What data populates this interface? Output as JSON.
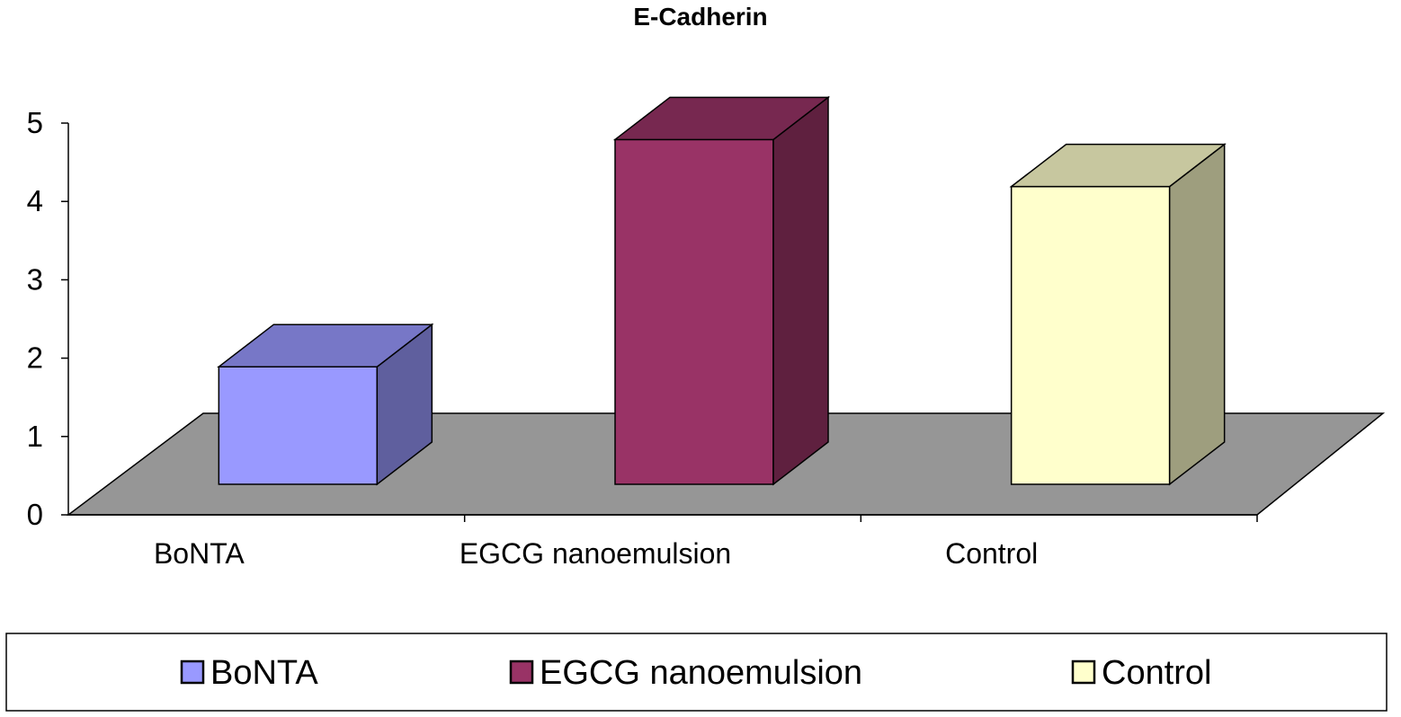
{
  "chart_data": {
    "type": "bar",
    "style": "3d-column",
    "title": "E-Cadherin",
    "xlabel": "",
    "ylabel": "",
    "ylim": [
      0,
      5
    ],
    "yticks": [
      0,
      1,
      2,
      3,
      4,
      5
    ],
    "categories": [
      "BoNTA",
      "EGCG nanoemulsion",
      "Control"
    ],
    "series": [
      {
        "name": "BoNTA",
        "values": [
          1.5,
          null,
          null
        ],
        "color": "#9999ff"
      },
      {
        "name": "EGCG nanoemulsion",
        "values": [
          null,
          4.4,
          null
        ],
        "color": "#993366"
      },
      {
        "name": "Control",
        "values": [
          null,
          null,
          3.8
        ],
        "color": "#ffffcc"
      }
    ],
    "values": [
      1.5,
      4.4,
      3.8
    ],
    "floor_color": "#969696",
    "grid": false,
    "legend": {
      "placement": "bottom",
      "entries": [
        "BoNTA",
        "EGCG nanoemulsion",
        "Control"
      ]
    }
  }
}
